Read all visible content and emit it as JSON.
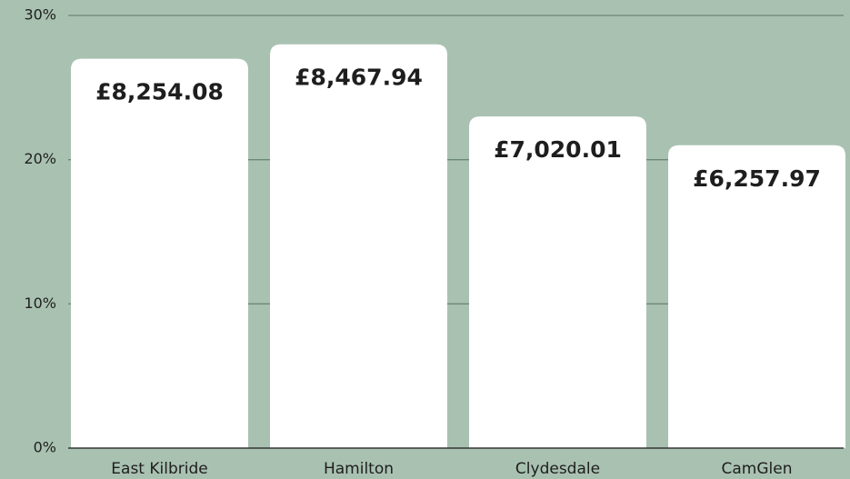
{
  "chart_data": {
    "type": "bar",
    "categories": [
      "East Kilbride",
      "Hamilton",
      "Clydesdale",
      "CamGlen"
    ],
    "values": [
      27,
      28,
      23,
      21
    ],
    "annotations": [
      "£8,254.08",
      "£8,467.94",
      "£7,020.01",
      "£6,257.97"
    ],
    "color": "#ffffff",
    "ylim": [
      0,
      30
    ],
    "yticks": [
      {
        "value": 0,
        "label": "0%"
      },
      {
        "value": 10,
        "label": "10%"
      },
      {
        "value": 20,
        "label": "20%"
      },
      {
        "value": 30,
        "label": "30%"
      }
    ],
    "grid": true
  }
}
